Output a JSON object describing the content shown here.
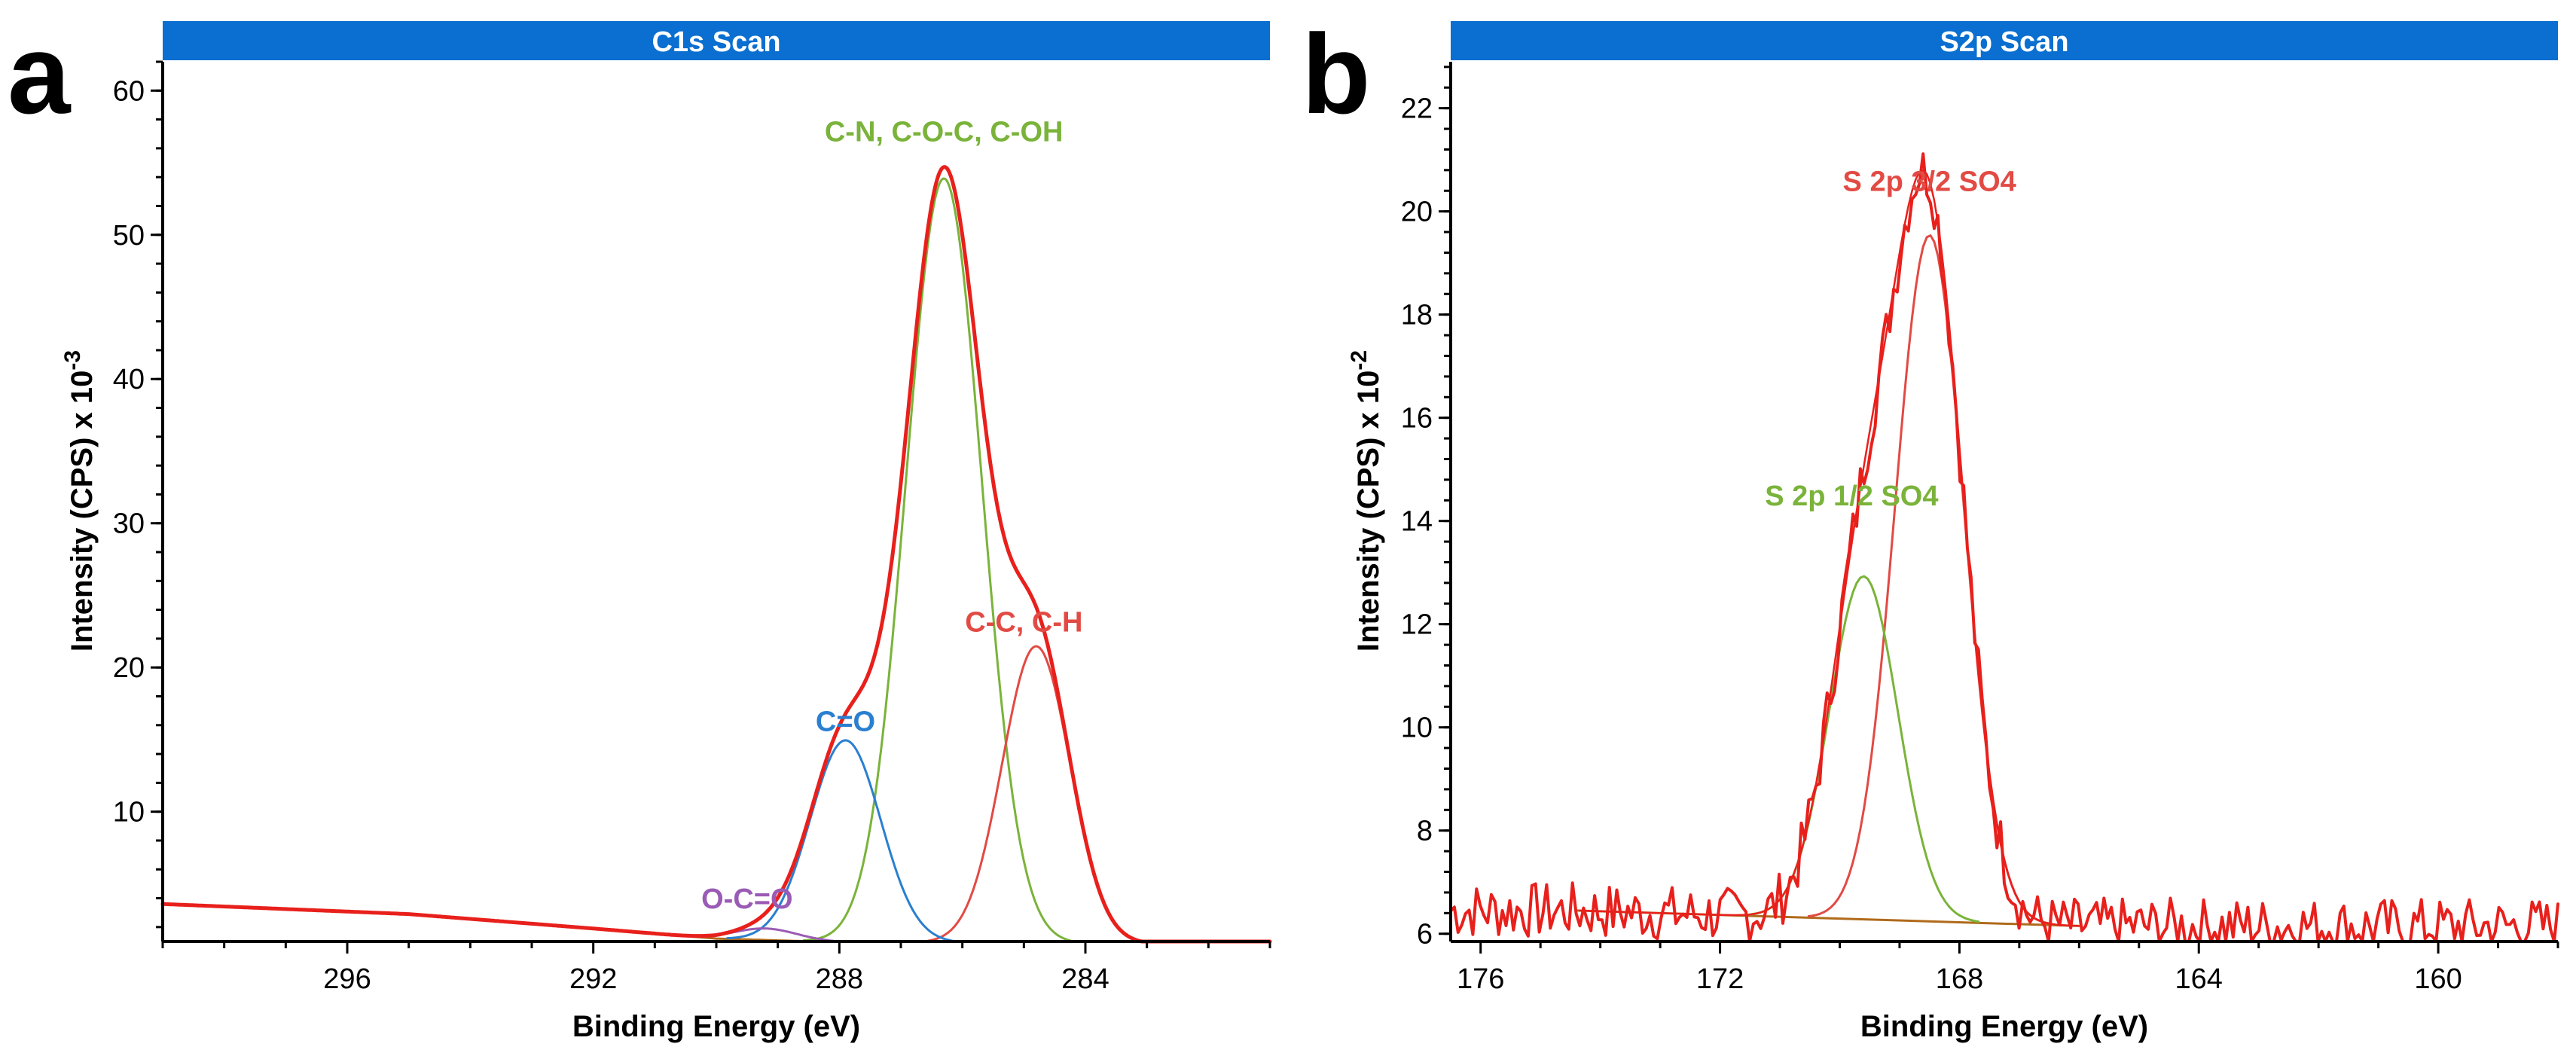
{
  "chart_data": [
    {
      "panel": "a",
      "type": "line",
      "title": "C1s Scan",
      "xlabel": "Binding Energy (eV)",
      "ylabel": "Intensity (CPS) x 10",
      "ylabel_exp": "-3",
      "xlim": [
        299,
        281
      ],
      "ylim": [
        1,
        62
      ],
      "xticks": [
        296,
        292,
        288,
        284
      ],
      "yticks": [
        10,
        20,
        30,
        40,
        50,
        60
      ],
      "colors": {
        "envelope": "#e8201c",
        "cn": "#7ab33a",
        "cc": "#e24a44",
        "co": "#2a7fd0",
        "occo": "#9a5bb5",
        "bg": "#b06a1a"
      },
      "labels": [
        {
          "text": "C-N, C-O-C, C-OH",
          "color": "#7ab33a",
          "x": 286.3,
          "y": 56.5
        },
        {
          "text": "C-C, C-H",
          "color": "#e24a44",
          "x": 285.0,
          "y": 22.5
        },
        {
          "text": "C=O",
          "color": "#2a7fd0",
          "x": 287.9,
          "y": 15.6
        },
        {
          "text": "O-C=O",
          "color": "#9a5bb5",
          "x": 289.5,
          "y": 3.3
        }
      ],
      "components": [
        {
          "name": "C-N, C-O-C, C-OH",
          "center": 286.3,
          "height": 53.0,
          "fwhm": 1.45
        },
        {
          "name": "C-C, C-H",
          "center": 284.8,
          "height": 20.6,
          "fwhm": 1.3
        },
        {
          "name": "C=O",
          "center": 287.9,
          "height": 14.0,
          "fwhm": 1.35
        },
        {
          "name": "O-C=O",
          "center": 289.2,
          "height": 0.8,
          "fwhm": 1.2
        }
      ],
      "background": {
        "x": [
          299,
          295,
          292,
          290,
          288,
          286,
          284,
          281
        ],
        "y": [
          3.6,
          2.9,
          1.9,
          1.2,
          0.95,
          0.9,
          0.85,
          0.8
        ]
      }
    },
    {
      "panel": "b",
      "type": "line",
      "title": "S2p Scan",
      "xlabel": "Binding Energy (eV)",
      "ylabel": "Intensity (CPS) x 10",
      "ylabel_exp": "-2",
      "xlim": [
        176.5,
        158
      ],
      "ylim": [
        5.85,
        22.9
      ],
      "xticks": [
        176,
        172,
        168,
        164,
        160
      ],
      "yticks": [
        6,
        8,
        10,
        12,
        14,
        16,
        18,
        20,
        22
      ],
      "colors": {
        "envelope": "#e8201c",
        "s32": "#e24a44",
        "s12": "#7ab33a",
        "bg": "#b06a1a"
      },
      "labels": [
        {
          "text": "S 2p 3/2 SO4",
          "color": "#e24a44",
          "x": 168.5,
          "y": 20.4
        },
        {
          "text": "S 2p 1/2 SO4",
          "color": "#7ab33a",
          "x": 169.8,
          "y": 14.3
        }
      ],
      "components": [
        {
          "name": "S 2p 3/2 SO4",
          "center": 168.5,
          "height": 13.3,
          "fwhm": 1.35
        },
        {
          "name": "S 2p 1/2 SO4",
          "center": 169.6,
          "height": 6.65,
          "fwhm": 1.35
        }
      ],
      "baseline": {
        "x_start": 174.4,
        "x_end": 166.0,
        "y_start": 6.45,
        "y_end": 6.15
      },
      "noise_level": 6.45
    }
  ]
}
